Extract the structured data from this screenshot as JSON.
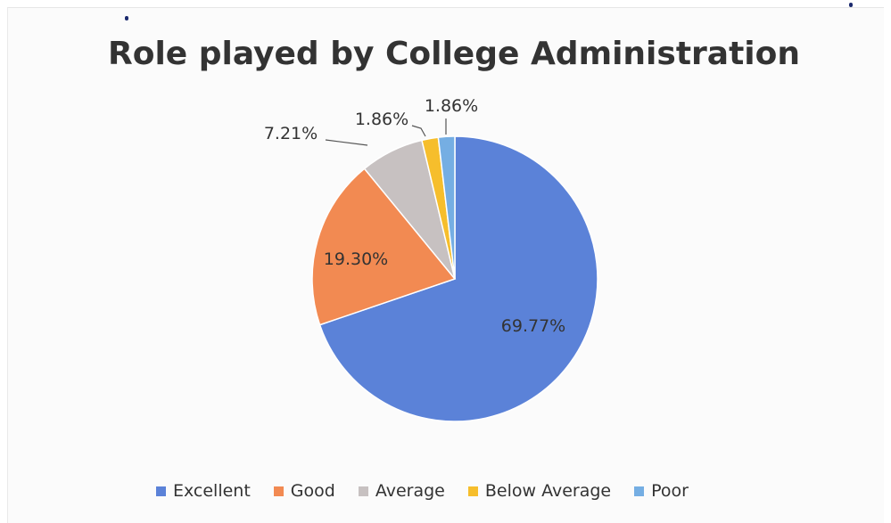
{
  "chart_data": {
    "type": "pie",
    "title": "Role played by College Administration",
    "categories": [
      "Excellent",
      "Good",
      "Average",
      "Below Average",
      "Poor"
    ],
    "values": [
      69.77,
      19.3,
      7.21,
      1.86,
      1.86
    ],
    "data_labels": [
      "69.77%",
      "19.30%",
      "7.21%",
      "1.86%",
      "1.86%"
    ],
    "colors": [
      "#5b82d8",
      "#f28a52",
      "#c7c1c1",
      "#f6be2c",
      "#75aee3"
    ],
    "legend_position": "bottom",
    "start_angle": "12 o'clock, clockwise"
  }
}
